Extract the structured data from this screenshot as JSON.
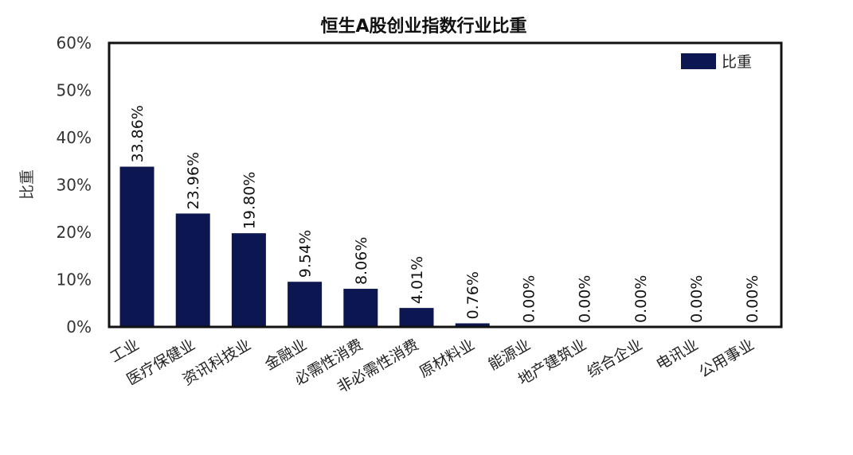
{
  "chart_data": {
    "type": "bar",
    "title": "恒生A股创业指数行业比重",
    "ylabel": "比重",
    "xlabel": "",
    "ylim": [
      0,
      60
    ],
    "yticks": [
      "0%",
      "10%",
      "20%",
      "30%",
      "40%",
      "50%",
      "60%"
    ],
    "grid": false,
    "legend": {
      "placement": "top-right",
      "entries": [
        "比重"
      ]
    },
    "colors": {
      "bar": "#0c1650",
      "axis": "#111111"
    },
    "categories": [
      "工业",
      "医疗保健业",
      "资讯科技业",
      "金融业",
      "必需性消费",
      "非必需性消费",
      "原材料业",
      "能源业",
      "地产建筑业",
      "综合企业",
      "电讯业",
      "公用事业"
    ],
    "series": [
      {
        "name": "比重",
        "values": [
          33.86,
          23.96,
          19.8,
          9.54,
          8.06,
          4.01,
          0.76,
          0.0,
          0.0,
          0.0,
          0.0,
          0.0
        ],
        "labels": [
          "33.86%",
          "23.96%",
          "19.80%",
          "9.54%",
          "8.06%",
          "4.01%",
          "0.76%",
          "0.00%",
          "0.00%",
          "0.00%",
          "0.00%",
          "0.00%"
        ]
      }
    ]
  }
}
